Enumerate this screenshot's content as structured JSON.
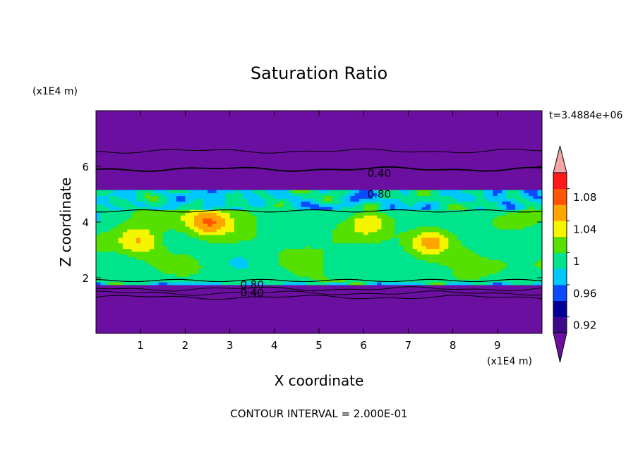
{
  "chart_data": {
    "type": "heatmap",
    "title": "Saturation Ratio",
    "xlabel": "X coordinate",
    "ylabel": "Z coordinate",
    "x_units": "(x1E4 m)",
    "y_units": "(x1E4 m)",
    "time_label": "t=3.4884e+06",
    "footer": "CONTOUR INTERVAL = 2.000E-01",
    "xlim": [
      0,
      10
    ],
    "ylim": [
      0,
      8
    ],
    "x_ticks": [
      "1",
      "2",
      "3",
      "4",
      "5",
      "6",
      "7",
      "8",
      "9"
    ],
    "y_ticks": [
      "2",
      "4",
      "6"
    ],
    "colorbar": {
      "levels": [
        0.9,
        0.92,
        0.94,
        0.96,
        0.98,
        1.0,
        1.02,
        1.04,
        1.06,
        1.08,
        1.1
      ],
      "tick_labels": [
        "0.92",
        "0.96",
        "1",
        "1.04",
        "1.08"
      ],
      "colors": [
        "#3a0a8a",
        "#000096",
        "#0a4bff",
        "#00c8ff",
        "#00e58c",
        "#55e000",
        "#f5f500",
        "#ffa500",
        "#ff5500",
        "#ff1a1a"
      ],
      "under_color": "#6a0fa0",
      "over_color": "#f4a6a6"
    },
    "contour_labels": [
      {
        "text": "0.40",
        "x": 6.35,
        "z": 5.75
      },
      {
        "text": "0.80",
        "x": 6.35,
        "z": 5.0
      },
      {
        "text": "0.80",
        "x": 3.5,
        "z": 1.75
      },
      {
        "text": "0.40",
        "x": 3.5,
        "z": 1.45
      }
    ],
    "fields": {
      "background_value": 0.3,
      "moist_layer_z": [
        1.9,
        4.4
      ],
      "upper_transition_z": [
        4.4,
        5.1
      ],
      "lower_transition_z": [
        1.75,
        1.9
      ],
      "contours_z": [
        1.3,
        1.45,
        1.6,
        5.9,
        6.55
      ]
    }
  }
}
